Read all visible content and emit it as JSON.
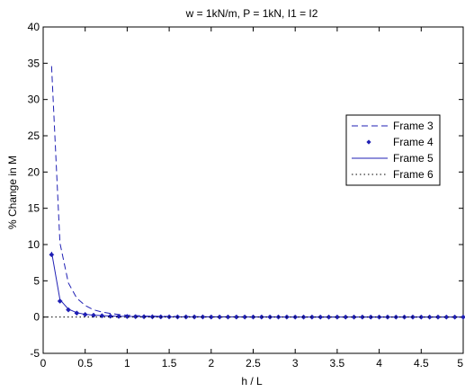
{
  "chart_data": {
    "type": "line",
    "title": "w = 1kN/m, P = 1kN, I1 = I2",
    "xlabel": "h / L",
    "ylabel": "% Change in M",
    "xlim": [
      0,
      5
    ],
    "ylim": [
      -5,
      40
    ],
    "xticks": [
      "0",
      "0.5",
      "1",
      "1.5",
      "2",
      "2.5",
      "3",
      "3.5",
      "4",
      "4.5",
      "5"
    ],
    "yticks": [
      "-5",
      "0",
      "5",
      "10",
      "15",
      "20",
      "25",
      "30",
      "35",
      "40"
    ],
    "grid": false,
    "legend_position": "right",
    "series": [
      {
        "name": "Frame 3",
        "style": "dashed",
        "color": "#1f1fb4",
        "x": [
          0.1,
          0.2,
          0.3,
          0.4,
          0.5,
          0.6,
          0.7,
          0.8,
          0.9,
          1.0,
          1.2,
          1.5,
          2.0,
          3.0,
          4.0,
          5.0
        ],
        "y": [
          34.6,
          10.2,
          4.7,
          2.6,
          1.6,
          1.0,
          0.7,
          0.5,
          0.35,
          0.25,
          0.15,
          0.08,
          0.04,
          0.01,
          0.0,
          0.0
        ]
      },
      {
        "name": "Frame 4",
        "style": "markers",
        "color": "#1f1fb4",
        "x": [
          0.1,
          0.2,
          0.3,
          0.4,
          0.5,
          0.6,
          0.7,
          0.8,
          0.9,
          1.0,
          1.1,
          1.2,
          1.3,
          1.4,
          1.5,
          1.6,
          1.7,
          1.8,
          1.9,
          2.0,
          2.1,
          2.2,
          2.3,
          2.4,
          2.5,
          2.6,
          2.7,
          2.8,
          2.9,
          3.0,
          3.1,
          3.2,
          3.3,
          3.4,
          3.5,
          3.6,
          3.7,
          3.8,
          3.9,
          4.0,
          4.1,
          4.2,
          4.3,
          4.4,
          4.5,
          4.6,
          4.7,
          4.8,
          4.9,
          5.0
        ],
        "y": [
          8.6,
          2.2,
          1.0,
          0.55,
          0.35,
          0.25,
          0.18,
          0.13,
          0.1,
          0.08,
          0.06,
          0.05,
          0.04,
          0.03,
          0.03,
          0.02,
          0.02,
          0.02,
          0.02,
          0.01,
          0.01,
          0.01,
          0.01,
          0.01,
          0.01,
          0.01,
          0.01,
          0.01,
          0.01,
          0.0,
          0.0,
          0.0,
          0.0,
          0.0,
          0.0,
          0.0,
          0.0,
          0.0,
          0.0,
          0.0,
          0.0,
          0.0,
          0.0,
          0.0,
          0.0,
          0.0,
          0.0,
          0.0,
          0.0,
          0.0
        ]
      },
      {
        "name": "Frame 5",
        "style": "solid",
        "color": "#1f1fb4",
        "x": [
          0.1,
          0.2,
          0.3,
          0.4,
          0.5,
          0.6,
          0.7,
          0.8,
          0.9,
          1.0,
          1.5,
          2.0,
          3.0,
          4.0,
          5.0
        ],
        "y": [
          9.0,
          2.4,
          1.1,
          0.6,
          0.38,
          0.27,
          0.2,
          0.15,
          0.11,
          0.09,
          0.04,
          0.02,
          0.01,
          0.0,
          0.0
        ]
      },
      {
        "name": "Frame 6",
        "style": "dotted",
        "color": "#000000",
        "x": [
          0.0,
          5.0
        ],
        "y": [
          0.0,
          0.0
        ]
      }
    ]
  }
}
